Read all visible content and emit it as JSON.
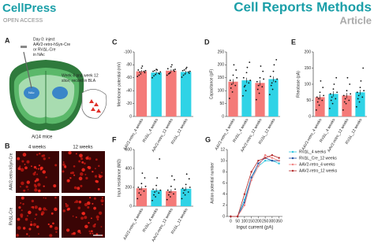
{
  "header": {
    "brand": "CellPress",
    "access": "OPEN ACCESS",
    "journal": "Cell Reports Methods",
    "article_type": "Article"
  },
  "panel_a": {
    "label": "A",
    "injection_lines": [
      "Day 0: inject",
      "AAV2-retro-hSyn-Cre",
      "or RVΔL-Cre",
      "in NAc"
    ],
    "recording_lines": [
      "Week 4 and week 12",
      "slice, record in BLA"
    ],
    "nac_label": "NAc",
    "mouse_line": "Ai14 mice"
  },
  "panel_b": {
    "label": "B",
    "columns": [
      "4 weeks",
      "12 weeks"
    ],
    "rows": [
      "AAV2-retro-hSyn-Cre",
      "RVΔL-Cre"
    ]
  },
  "chart_data": [
    {
      "type": "bar",
      "panel_label": "C",
      "ylabel": "Membrane potential (mV)",
      "categories": [
        "AAV2-retro_4 weeks",
        "RVΔL_4 weeks",
        "AAV2-retro_12 weeks",
        "RVΔL_12 weeks"
      ],
      "colors": [
        "#f47a78",
        "#2fd3e6",
        "#f47a78",
        "#2fd3e6"
      ],
      "values": [
        -70,
        -68,
        -71,
        -69
      ],
      "errors": [
        2,
        2,
        2,
        2
      ],
      "points": [
        [
          -62,
          -66,
          -70,
          -72,
          -75,
          -68,
          -64,
          -78,
          -71,
          -69
        ],
        [
          -60,
          -65,
          -67,
          -70,
          -73,
          -66,
          -63,
          -72,
          -69,
          -71
        ],
        [
          -64,
          -68,
          -72,
          -74,
          -77,
          -70,
          -66,
          -80,
          -73,
          -67
        ],
        [
          -61,
          -66,
          -69,
          -71,
          -74,
          -67,
          -64,
          -76,
          -70,
          -72
        ]
      ],
      "ylim": [
        0,
        -100
      ],
      "yticks": [
        0,
        -20,
        -40,
        -60,
        -80,
        -100
      ]
    },
    {
      "type": "bar",
      "panel_label": "D",
      "ylabel": "Capacitance (pF)",
      "categories": [
        "AAV2-retro_4 weeks",
        "RVΔL_4 weeks",
        "AAV2-retro_12 weeks",
        "RVΔL_12 weeks"
      ],
      "colors": [
        "#f47a78",
        "#2fd3e6",
        "#f47a78",
        "#2fd3e6"
      ],
      "values": [
        135,
        140,
        130,
        145
      ],
      "errors": [
        10,
        10,
        10,
        10
      ],
      "points": [
        [
          70,
          95,
          120,
          140,
          160,
          180,
          110,
          200,
          150,
          125
        ],
        [
          80,
          100,
          130,
          150,
          170,
          210,
          115,
          190,
          140,
          120
        ],
        [
          65,
          90,
          115,
          135,
          150,
          175,
          105,
          195,
          145,
          120
        ],
        [
          85,
          105,
          135,
          155,
          175,
          220,
          120,
          200,
          145,
          130
        ]
      ],
      "ylim": [
        0,
        250
      ],
      "yticks": [
        0,
        50,
        100,
        150,
        200,
        250
      ]
    },
    {
      "type": "bar",
      "panel_label": "E",
      "ylabel": "Rheobase (pA)",
      "categories": [
        "AAV2-retro_4 weeks",
        "RVΔL_4 weeks",
        "AAV2-retro_12 weeks",
        "RVΔL_12 weeks"
      ],
      "colors": [
        "#f47a78",
        "#2fd3e6",
        "#f47a78",
        "#2fd3e6"
      ],
      "values": [
        60,
        70,
        65,
        75
      ],
      "errors": [
        8,
        8,
        8,
        8
      ],
      "points": [
        [
          20,
          35,
          50,
          60,
          75,
          90,
          45,
          110,
          65,
          55
        ],
        [
          25,
          40,
          55,
          70,
          85,
          120,
          50,
          100,
          75,
          60
        ],
        [
          20,
          40,
          50,
          65,
          80,
          100,
          45,
          120,
          70,
          55
        ],
        [
          30,
          45,
          60,
          75,
          90,
          150,
          55,
          110,
          80,
          65
        ]
      ],
      "ylim": [
        0,
        200
      ],
      "yticks": [
        0,
        50,
        100,
        150,
        200
      ]
    },
    {
      "type": "bar",
      "panel_label": "F",
      "ylabel": "Input resistance (MΩ)",
      "categories": [
        "AAV2-retro_4 weeks",
        "RVΔL_4 weeks",
        "AAV2-retro_12 weeks",
        "RVΔL_12 weeks"
      ],
      "colors": [
        "#f47a78",
        "#2fd3e6",
        "#f47a78",
        "#2fd3e6"
      ],
      "values": [
        190,
        170,
        160,
        185
      ],
      "errors": [
        20,
        20,
        20,
        20
      ],
      "points": [
        [
          80,
          120,
          160,
          200,
          240,
          300,
          140,
          350,
          210,
          180
        ],
        [
          60,
          100,
          140,
          180,
          220,
          500,
          120,
          300,
          170,
          150
        ],
        [
          70,
          100,
          130,
          170,
          210,
          280,
          120,
          320,
          180,
          150
        ],
        [
          80,
          120,
          150,
          190,
          230,
          290,
          140,
          340,
          200,
          170
        ]
      ],
      "ylim": [
        0,
        600
      ],
      "yticks": [
        0,
        200,
        400,
        600
      ]
    },
    {
      "type": "line",
      "panel_label": "G",
      "xlabel": "Input current (pA)",
      "ylabel": "Action potential number",
      "x": [
        0,
        50,
        100,
        150,
        200,
        250,
        300,
        350
      ],
      "xlim": [
        -25,
        375
      ],
      "xticks": [
        0,
        50,
        100,
        150,
        200,
        250,
        300,
        350
      ],
      "ylim": [
        0,
        12
      ],
      "yticks": [
        0,
        2,
        4,
        6,
        8,
        10,
        12
      ],
      "legend": "right",
      "series": [
        {
          "name": "RVΔL_4 weeks",
          "color": "#2bc4e0",
          "values": [
            0,
            0,
            3,
            7,
            9,
            10,
            10,
            9.5
          ]
        },
        {
          "name": "RVΔL_Cre_12 weeks",
          "color": "#1f4fa0",
          "values": [
            0,
            0,
            2.5,
            7,
            9.5,
            10.5,
            10,
            10
          ]
        },
        {
          "name": "AAV2-retro_4 weeks",
          "color": "#f08080",
          "values": [
            0,
            0,
            2,
            6.5,
            9,
            11,
            10.5,
            10
          ]
        },
        {
          "name": "AAV2-retro_12 weeks",
          "color": "#b22a2a",
          "values": [
            0,
            0,
            4,
            8,
            10,
            10.5,
            11,
            10.5
          ]
        }
      ]
    }
  ]
}
